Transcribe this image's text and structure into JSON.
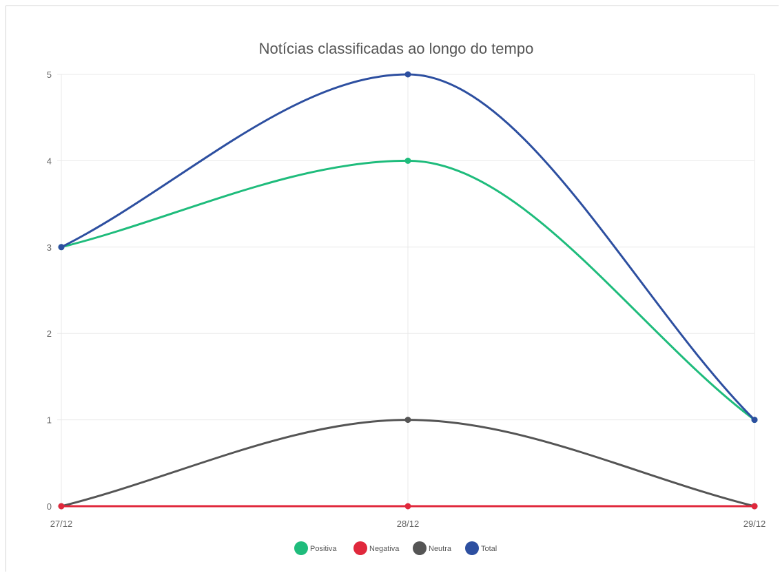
{
  "chart_data": {
    "type": "line",
    "title": "Notícias classificadas ao longo do tempo",
    "categories": [
      "27/12",
      "28/12",
      "29/12"
    ],
    "ylim": [
      0,
      5
    ],
    "yticks": [
      "0",
      "1",
      "2",
      "3",
      "4",
      "5"
    ],
    "grid": true,
    "legend_position": "bottom",
    "series": [
      {
        "name": "Positiva",
        "values": [
          3,
          4,
          1
        ],
        "color": "#1fbc7c"
      },
      {
        "name": "Negativa",
        "values": [
          0,
          0,
          0
        ],
        "color": "#e0283c"
      },
      {
        "name": "Neutra",
        "values": [
          0,
          1,
          0
        ],
        "color": "#555555"
      },
      {
        "name": "Total",
        "values": [
          3,
          5,
          1
        ],
        "color": "#2d4fa0"
      }
    ]
  }
}
